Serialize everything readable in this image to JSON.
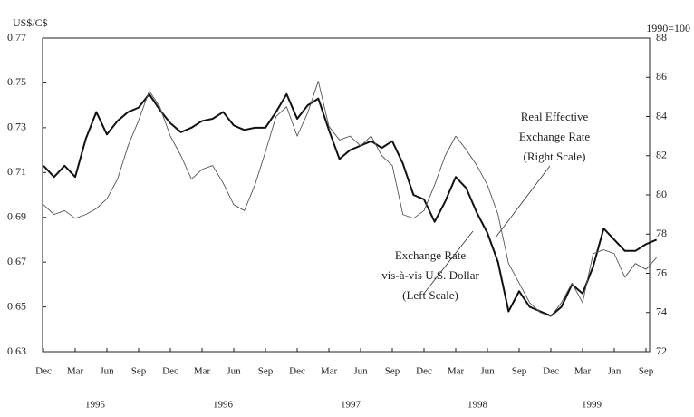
{
  "chart_data": {
    "type": "line",
    "y_label": "US$/C$",
    "y2_label": "1990=100",
    "categories": [
      "Dec",
      null,
      null,
      "Mar",
      null,
      null,
      "Jun",
      null,
      null,
      "Sep",
      null,
      null,
      "Dec",
      null,
      null,
      "Mar",
      null,
      null,
      "Jun",
      null,
      null,
      "Sep",
      null,
      null,
      "Dec",
      null,
      null,
      "Mar",
      null,
      null,
      "Jun",
      null,
      null,
      "Sep",
      null,
      null,
      "Dec",
      null,
      null,
      "Mar",
      null,
      null,
      "Jun",
      null,
      null,
      "Sep",
      null,
      null,
      "Dec",
      null,
      null,
      "Mar",
      null,
      null,
      "Jan",
      null,
      null,
      "Sep",
      null
    ],
    "years": [
      "1995",
      "1996",
      "1997",
      "1998",
      "1999"
    ],
    "series": [
      {
        "name": "Exchange Rate vis-à-vis U.S. Dollar (Left Scale)",
        "color": "#111",
        "width": 2,
        "axis": "y",
        "values": [
          0.713,
          0.708,
          0.713,
          0.708,
          0.725,
          0.737,
          0.727,
          0.733,
          0.737,
          0.739,
          0.745,
          0.738,
          0.732,
          0.728,
          0.73,
          0.733,
          0.734,
          0.737,
          0.731,
          0.729,
          0.73,
          0.73,
          0.737,
          0.745,
          0.734,
          0.74,
          0.743,
          0.729,
          0.716,
          0.72,
          0.722,
          0.724,
          0.721,
          0.724,
          0.714,
          0.7,
          0.698,
          0.688,
          0.697,
          0.708,
          0.703,
          0.692,
          0.683,
          0.67,
          0.648,
          0.657,
          0.65,
          0.648,
          0.646,
          0.65,
          0.66,
          0.656,
          0.668,
          0.685,
          0.68,
          0.675,
          0.675,
          0.678,
          0.68
        ]
      },
      {
        "name": "Real Effective Exchange Rate (Right Scale)",
        "color": "#555",
        "width": 0.9,
        "axis": "y2",
        "values": [
          79.5,
          79.0,
          79.2,
          78.8,
          79.0,
          79.3,
          79.8,
          80.8,
          82.5,
          83.8,
          85.3,
          84.5,
          83.0,
          82.0,
          80.8,
          81.3,
          81.5,
          80.6,
          79.5,
          79.2,
          80.5,
          82.2,
          84.0,
          84.5,
          83.0,
          84.2,
          85.8,
          83.5,
          82.8,
          83.0,
          82.5,
          83.0,
          82.0,
          81.5,
          79.0,
          78.8,
          79.2,
          80.5,
          82.0,
          83.0,
          82.3,
          81.5,
          80.5,
          79.0,
          76.5,
          75.5,
          74.5,
          74.0,
          73.8,
          74.5,
          75.5,
          74.5,
          77.0,
          77.2,
          77.0,
          75.8,
          76.5,
          76.2,
          76.8
        ]
      }
    ],
    "annotations": [
      {
        "lines": [
          "Real Effective",
          "Exchange Rate",
          "(Right Scale)"
        ]
      },
      {
        "lines": [
          "Exchange Rate",
          "vis-à-vis U.S. Dollar",
          "(Left Scale)"
        ]
      }
    ],
    "ylim": [
      0.63,
      0.77
    ],
    "yticks": [
      0.63,
      0.65,
      0.67,
      0.69,
      0.71,
      0.73,
      0.75,
      0.77
    ],
    "y2lim": [
      72,
      88
    ],
    "y2ticks": [
      72,
      74,
      76,
      78,
      80,
      82,
      84,
      86,
      88
    ]
  }
}
